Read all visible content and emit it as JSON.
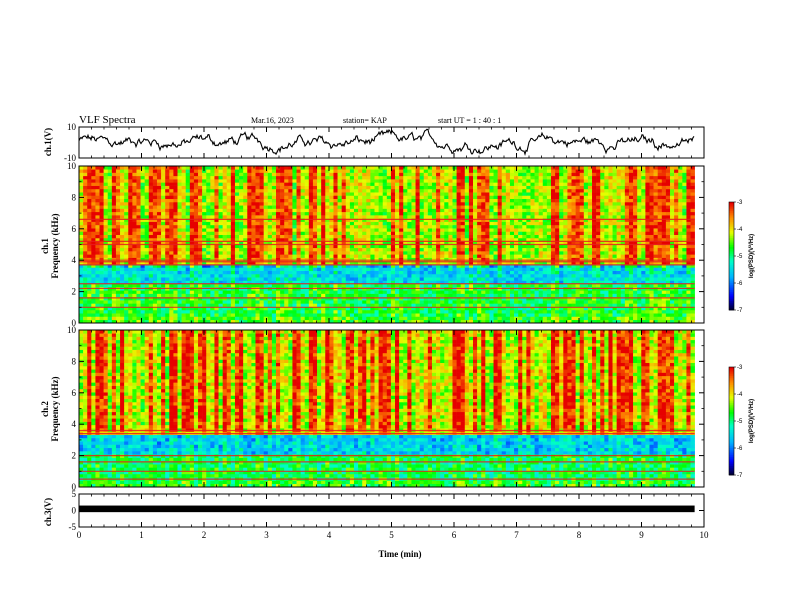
{
  "header": {
    "title": "VLF Spectra",
    "date": "Mar.16, 2023",
    "station": "station= KAP",
    "start_time": "start  UT =   1 : 40 : 1"
  },
  "chart_data": [
    {
      "type": "line",
      "panel": "ch1-waveform",
      "ylabel": "ch.1(V)",
      "ylim": [
        -10,
        10
      ],
      "yticks": [
        "10",
        "-10"
      ],
      "xlim": [
        0,
        10
      ],
      "series": [
        {
          "values_description_only": false,
          "approx_mean": 0,
          "approx_range": [
            -8,
            9
          ]
        }
      ]
    },
    {
      "type": "heatmap",
      "panel": "ch1-spectrogram",
      "ylabel_line1": "ch.1",
      "ylabel_line2": "Frequency  (kHz)",
      "ylim": [
        0,
        10
      ],
      "yticks": [
        "0",
        "2",
        "4",
        "6",
        "8",
        "10"
      ],
      "xlim": [
        0,
        9.85
      ],
      "colorbar": {
        "title": "log(PSD)(V²/Hz)",
        "ticks": [
          "-3",
          "-4",
          "-5",
          "-6",
          "-7"
        ],
        "range": [
          -7,
          -3
        ]
      },
      "bands_khz": [
        {
          "from": 0.0,
          "to": 0.5,
          "level": -4.6
        },
        {
          "from": 0.5,
          "to": 2.5,
          "level": -4.8
        },
        {
          "from": 2.5,
          "to": 3.8,
          "level": -5.5
        },
        {
          "from": 3.8,
          "to": 10.0,
          "level": -4.0
        }
      ],
      "lines_khz": [
        1.0,
        1.6,
        2.2,
        2.5,
        3.7,
        3.9,
        4.0,
        5.0,
        5.2,
        6.6
      ]
    },
    {
      "type": "heatmap",
      "panel": "ch2-spectrogram",
      "ylabel_line1": "ch.2",
      "ylabel_line2": "Frequency  (kHz)",
      "ylim": [
        0,
        10
      ],
      "yticks": [
        "0",
        "2",
        "4",
        "6",
        "8",
        "10"
      ],
      "xlim": [
        0,
        9.85
      ],
      "colorbar": {
        "title": "log(PSD)(V²/Hz)",
        "ticks": [
          "-3",
          "-4",
          "-5",
          "-6",
          "-7"
        ],
        "range": [
          -7,
          -3
        ]
      },
      "bands_khz": [
        {
          "from": 0.0,
          "to": 0.4,
          "level": -4.7
        },
        {
          "from": 0.4,
          "to": 2.0,
          "level": -4.9
        },
        {
          "from": 2.0,
          "to": 3.4,
          "level": -5.6
        },
        {
          "from": 3.4,
          "to": 10.0,
          "level": -3.9
        }
      ],
      "lines_khz": [
        0.5,
        1.0,
        1.6,
        2.0,
        3.4,
        3.6
      ]
    },
    {
      "type": "line",
      "panel": "ch3-waveform",
      "ylabel": "ch.3(V)",
      "ylim": [
        -5,
        5
      ],
      "yticks": [
        "5",
        "0",
        "-5"
      ],
      "xlim": [
        0,
        10
      ],
      "series": [
        {
          "approx_level": 0.5,
          "approx_band": [
            -0.5,
            1.5
          ]
        }
      ]
    }
  ],
  "x_axis": {
    "title": "Time  (min)",
    "ticks": [
      "0",
      "1",
      "2",
      "3",
      "4",
      "5",
      "6",
      "7",
      "8",
      "9",
      "10"
    ]
  }
}
